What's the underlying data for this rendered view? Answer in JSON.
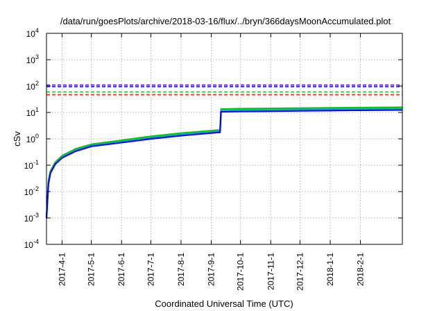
{
  "chart_data": {
    "type": "line",
    "title": "/data/run/goesPlots/archive/2018-03-16/flux/../bryn/366daysMoonAccumulated.plot",
    "xlabel": "Coordinated Universal Time (UTC)",
    "ylabel": "cSv",
    "x_start": "2017-03-16",
    "x_end": "2018-03-16",
    "x_ticks": [
      "2017-4-1",
      "2017-5-1",
      "2017-6-1",
      "2017-7-1",
      "2017-8-1",
      "2017-9-1",
      "2017-10-1",
      "2017-11-1",
      "2017-12-1",
      "2018-1-1",
      "2018-2-1"
    ],
    "y_scale": "log",
    "y_ticks": [
      {
        "base": "10",
        "exp": "-4",
        "value": 0.0001
      },
      {
        "base": "10",
        "exp": "-3",
        "value": 0.001
      },
      {
        "base": "10",
        "exp": "-2",
        "value": 0.01
      },
      {
        "base": "10",
        "exp": "-1",
        "value": 0.1
      },
      {
        "base": "10",
        "exp": "0",
        "value": 1
      },
      {
        "base": "10",
        "exp": "1",
        "value": 10
      },
      {
        "base": "10",
        "exp": "2",
        "value": 100
      },
      {
        "base": "10",
        "exp": "3",
        "value": 1000
      },
      {
        "base": "10",
        "exp": "4",
        "value": 10000
      }
    ],
    "ylim": [
      0.0001,
      10000
    ],
    "grid": true,
    "thresholds": [
      {
        "value": 110,
        "color": "#8000ff"
      },
      {
        "value": 95,
        "color": "#1a1aff"
      },
      {
        "value": 60,
        "color": "#22cc22"
      },
      {
        "value": 47,
        "color": "#ff2020"
      }
    ],
    "series": [
      {
        "color": "#00cc00",
        "x": [
          "2017-03-16",
          "2017-03-18",
          "2017-03-20",
          "2017-03-25",
          "2017-04-01",
          "2017-04-15",
          "2017-05-01",
          "2017-06-01",
          "2017-07-01",
          "2017-08-01",
          "2017-09-08",
          "2017-09-10",
          "2017-09-11",
          "2017-10-01",
          "2017-11-01",
          "2017-12-01",
          "2018-01-01",
          "2018-02-01",
          "2018-03-16"
        ],
        "values": [
          0.001,
          0.025,
          0.06,
          0.13,
          0.23,
          0.42,
          0.62,
          0.88,
          1.25,
          1.65,
          2.15,
          2.15,
          13.5,
          14.0,
          14.3,
          14.6,
          15.0,
          15.3,
          15.8
        ]
      },
      {
        "color": "#00b4b4",
        "x": [
          "2017-03-16",
          "2017-03-18",
          "2017-03-20",
          "2017-03-25",
          "2017-04-01",
          "2017-04-15",
          "2017-05-01",
          "2017-06-01",
          "2017-07-01",
          "2017-08-01",
          "2017-09-08",
          "2017-09-10",
          "2017-09-11",
          "2017-10-01",
          "2017-11-01",
          "2017-12-01",
          "2018-01-01",
          "2018-02-01",
          "2018-03-16"
        ],
        "values": [
          0.001,
          0.022,
          0.055,
          0.12,
          0.21,
          0.38,
          0.57,
          0.8,
          1.12,
          1.48,
          1.95,
          1.95,
          12.2,
          12.6,
          12.9,
          13.2,
          13.5,
          13.8,
          14.2
        ]
      },
      {
        "color": "#0000ff",
        "x": [
          "2017-03-16",
          "2017-03-18",
          "2017-03-20",
          "2017-03-25",
          "2017-04-01",
          "2017-04-15",
          "2017-05-01",
          "2017-06-01",
          "2017-07-01",
          "2017-08-01",
          "2017-09-08",
          "2017-09-10",
          "2017-09-11",
          "2017-10-01",
          "2017-11-01",
          "2017-12-01",
          "2018-01-01",
          "2018-02-01",
          "2018-03-16"
        ],
        "values": [
          0.001,
          0.02,
          0.05,
          0.11,
          0.19,
          0.34,
          0.52,
          0.72,
          1.0,
          1.32,
          1.75,
          1.75,
          10.6,
          10.9,
          11.2,
          11.5,
          11.8,
          12.1,
          12.4
        ]
      }
    ]
  }
}
